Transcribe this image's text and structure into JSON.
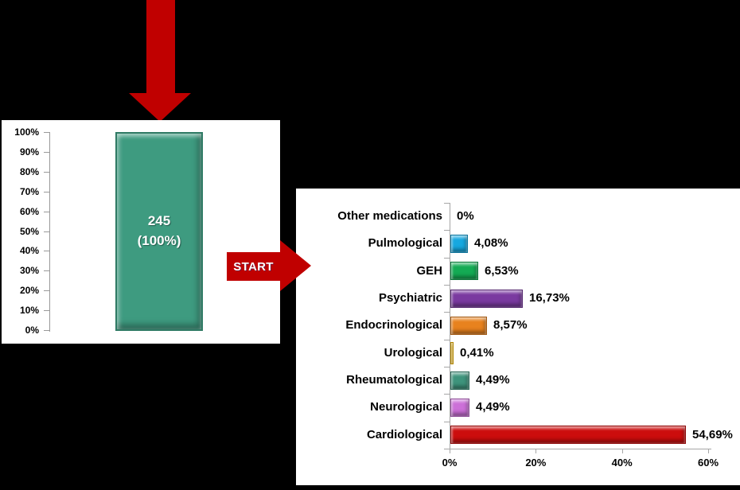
{
  "scene": {
    "background_color": "#000000",
    "panel_color": "#FFFFFF",
    "arrow_color": "#C00000"
  },
  "flow": {
    "start_label": "START"
  },
  "chart_data": [
    {
      "type": "bar",
      "orientation": "vertical",
      "values": [
        100
      ],
      "bar_label_lines": [
        "245",
        "(100%)"
      ],
      "bar_color": "#3E9B80",
      "ytick_labels": [
        "100%",
        "90%",
        "80%",
        "70%",
        "60%",
        "50%",
        "40%",
        "30%",
        "20%",
        "10%",
        "0%"
      ],
      "ylim": [
        0,
        100
      ],
      "grid": false
    },
    {
      "type": "bar",
      "orientation": "horizontal",
      "categories": [
        "Other medications",
        "Pulmological",
        "GEH",
        "Psychiatric",
        "Endocrinological",
        "Urological",
        "Rheumatological",
        "Neurological",
        "Cardiological"
      ],
      "values": [
        0,
        4.08,
        6.53,
        16.73,
        8.57,
        0.41,
        4.49,
        4.49,
        54.69
      ],
      "value_labels": [
        "0%",
        "4,08%",
        "6,53%",
        "16,73%",
        "8,57%",
        "0,41%",
        "4,49%",
        "4,49%",
        "54,69%"
      ],
      "bar_colors": [
        "none",
        "#16A8E0",
        "#14AB54",
        "#7A3AA0",
        "#E8821E",
        "#FFC000",
        "#3E947C",
        "#CC70D8",
        "#CC0D0D"
      ],
      "xtick_labels": [
        "0%",
        "20%",
        "40%",
        "60%"
      ],
      "xtick_values": [
        0,
        20,
        40,
        60
      ],
      "xlim": [
        0,
        62
      ],
      "grid": false
    }
  ]
}
